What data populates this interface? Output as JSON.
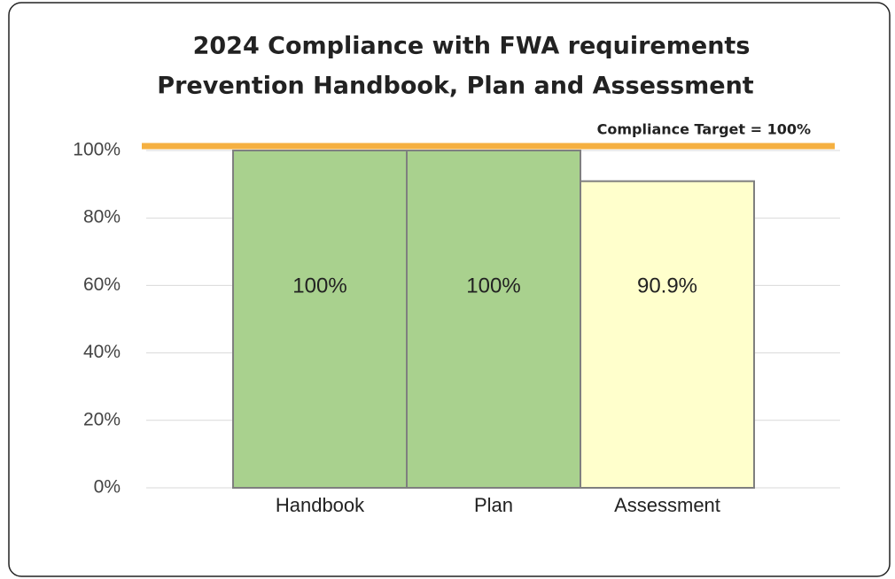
{
  "chart_data": {
    "type": "bar",
    "title": [
      "2024 Compliance with FWA requirements",
      "Prevention Handbook, Plan and Assessment"
    ],
    "categories": [
      "Handbook",
      "Plan",
      "Assessment"
    ],
    "values": [
      100,
      100,
      90.9
    ],
    "value_labels": [
      "100%",
      "100%",
      "90.9%"
    ],
    "colors": [
      "#a9d18e",
      "#a9d18e",
      "#ffffcc"
    ],
    "ylim": [
      0,
      100
    ],
    "yticks": [
      {
        "value": 0,
        "label": "0%"
      },
      {
        "value": 20,
        "label": "20%"
      },
      {
        "value": 40,
        "label": "40%"
      },
      {
        "value": 60,
        "label": "60%"
      },
      {
        "value": 80,
        "label": "80%"
      },
      {
        "value": 100,
        "label": "100%"
      }
    ],
    "grid": true,
    "target": {
      "value": 100,
      "label": "Compliance Target = 100%",
      "color": "#f5b041"
    }
  }
}
